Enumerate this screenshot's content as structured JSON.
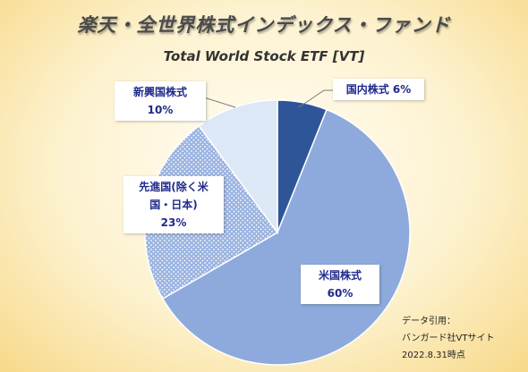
{
  "title": "楽天・全世界株式インデックス・ファンド",
  "subtitle": "Total World Stock ETF [VT]",
  "chart_data": {
    "type": "pie",
    "slices": [
      {
        "label": "国内株式",
        "value": 6,
        "value_text": "6%",
        "color": "#2e5597"
      },
      {
        "label": "米国株式",
        "value": 60,
        "value_text": "60%",
        "color": "#8eaadc"
      },
      {
        "label": "先進国(除く米国・日本)",
        "value": 23,
        "value_text": "23%",
        "color": "#9ab3e0",
        "pattern": "dotted"
      },
      {
        "label": "新興国株式",
        "value": 10,
        "value_text": "10%",
        "color": "#dde8f6"
      }
    ],
    "labels": {
      "kokunai": "国内株式 6%",
      "shinko_name": "新興国株式",
      "shinko_pct": "10%",
      "senshin_line1": "先進国(除く米",
      "senshin_line2": "国・日本)",
      "senshin_pct": "23%",
      "bei_name": "米国株式",
      "bei_pct": "60%"
    }
  },
  "source": {
    "line1": "データ引用：",
    "line2": "バンガード社VTサイト",
    "line3": "2022.8.31時点"
  }
}
